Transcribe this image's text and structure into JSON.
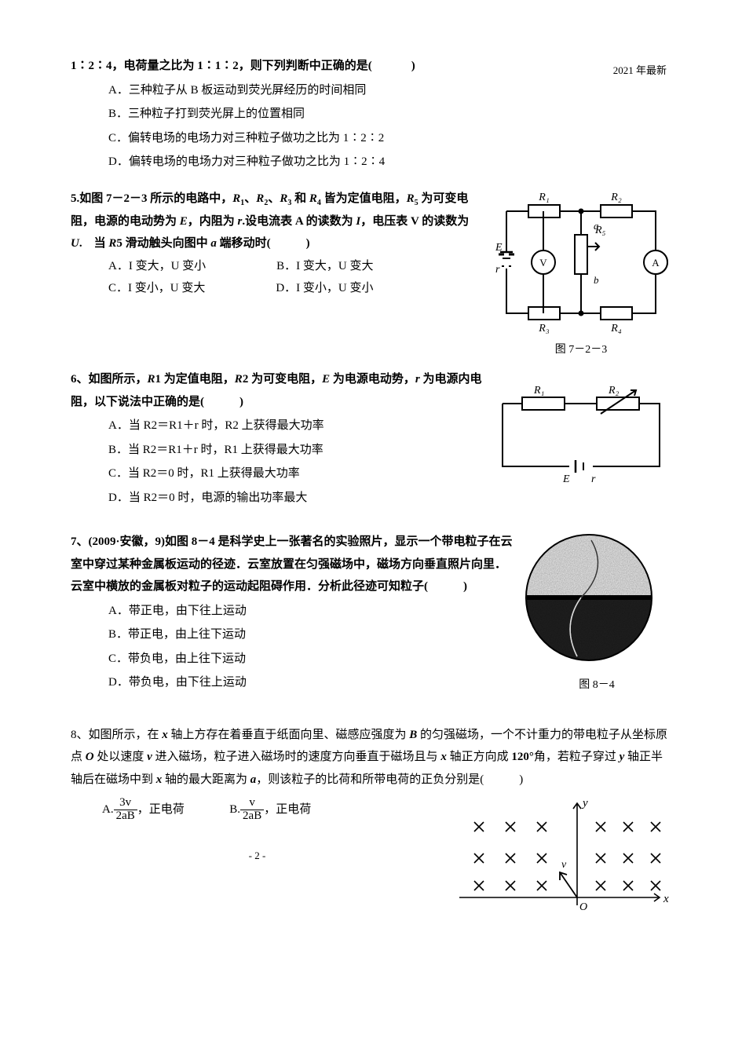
{
  "header": {
    "note": "2021 年最新"
  },
  "q4": {
    "stem_pre": "1∶2∶4，电荷量之比为 1∶1∶2，则下列判断中正确的是(",
    "stem_post": ")",
    "opts": {
      "A": "A．三种粒子从 B 板运动到荧光屏经历的时间相同",
      "B": "B．三种粒子打到荧光屏上的位置相同",
      "C": "C．偏转电场的电场力对三种粒子做功之比为 1∶2∶2",
      "D": "D．偏转电场的电场力对三种粒子做功之比为 1∶2∶4"
    }
  },
  "q5": {
    "stem": "5.如图 7－2－3 所示的电路中，R1、R2、R3 和 R4 皆为定值电阻，R5 为可变电阻，电源的电动势为 E，内阻为 r.设电流表 A 的读数为 I，电压表 V 的读数为 U.  当 R5 滑动触头向图中 a 端移动时(　　　)",
    "opts": {
      "A": "A．I 变大，U 变小",
      "B": "B．I 变大，U 变大",
      "C": "C．I 变小，U 变大",
      "D": "D．I 变小，U 变小"
    },
    "fig_caption": "图 7－2－3",
    "circuit": {
      "stroke": "#000000",
      "stroke_width": 2,
      "labels": {
        "R1": "R₁",
        "R2": "R₂",
        "R3": "R₃",
        "R4": "R₄",
        "R5": "R₅",
        "E": "E",
        "r": "r",
        "V": "V",
        "A": "A",
        "a": "a",
        "b": "b"
      }
    }
  },
  "q6": {
    "stem": "6、如图所示，R1 为定值电阻，R2 为可变电阻，E 为电源电动势，r 为电源内电阻，以下说法中正确的是(　　　)",
    "opts": {
      "A": "A．当 R2＝R1＋r 时，R2 上获得最大功率",
      "B": "B．当 R2＝R1＋r 时，R1 上获得最大功率",
      "C": "C．当 R2＝0 时，R1 上获得最大功率",
      "D": "D．当 R2＝0 时，电源的输出功率最大"
    },
    "circuit": {
      "stroke": "#000000",
      "stroke_width": 2,
      "labels": {
        "R1": "R₁",
        "R2": "R₂",
        "E": "E",
        "r": "r"
      }
    }
  },
  "q7": {
    "stem": "7、(2009·安徽，9)如图 8－4 是科学史上一张著名的实验照片，显示一个带电粒子在云室中穿过某种金属板运动的径迹．云室放置在匀强磁场中，磁场方向垂直照片向里．云室中横放的金属板对粒子的运动起阻碍作用．分析此径迹可知粒子(　　　)",
    "opts": {
      "A": "A．带正电，由下往上运动",
      "B": "B．带正电，由上往下运动",
      "C": "C．带负电，由上往下运动",
      "D": "D．带负电，由下往上运动"
    },
    "fig_caption": "图 8－4"
  },
  "q8": {
    "stem": "8、如图所示，在 x 轴上方存在着垂直于纸面向里、磁感应强度为 B 的匀强磁场，一个不计重力的带电粒子从坐标原点 O 处以速度 v 进入磁场，粒子进入磁场时的速度方向垂直于磁场且与 x 轴正方向成 120°角，若粒子穿过 y 轴正半轴后在磁场中到 x 轴的最大距离为 a，则该粒子的比荷和所带电荷的正负分别是(　　　)",
    "optA_label": "A.",
    "optA_frac_num": "3v",
    "optA_frac_den": "2aB",
    "optA_tail": "，正电荷",
    "optB_label": "B.",
    "optB_frac_num": "v",
    "optB_frac_den": "2aB",
    "optB_tail": "，正电荷",
    "diagram": {
      "x_label": "x",
      "y_label": "y",
      "O": "O",
      "v": "v",
      "cross_rows": 3,
      "cross_cols": 6,
      "cross_color": "#000000",
      "axis_color": "#000000"
    }
  },
  "page_number": "- 2 -"
}
